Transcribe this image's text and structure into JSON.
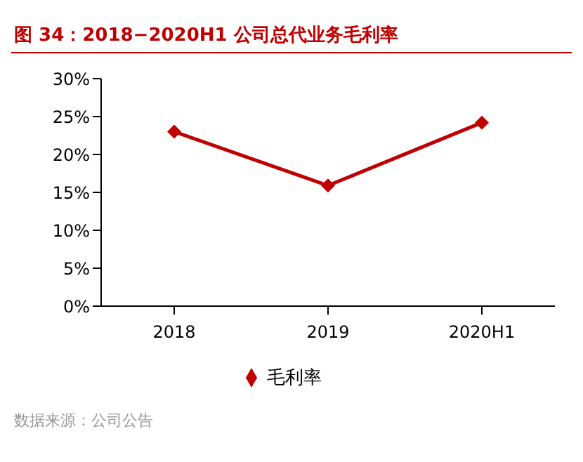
{
  "chart_data": {
    "type": "line",
    "title": "图 34：2018−2020H1 公司总代业务毛利率",
    "categories": [
      "2018",
      "2019",
      "2020H1"
    ],
    "series": [
      {
        "name": "毛利率",
        "color": "#c00000",
        "values": [
          23.0,
          15.9,
          24.2
        ]
      }
    ],
    "ylim": [
      0,
      30
    ],
    "yticks": [
      {
        "value": 0,
        "label": "0%"
      },
      {
        "value": 5,
        "label": "5%"
      },
      {
        "value": 10,
        "label": "10%"
      },
      {
        "value": 15,
        "label": "15%"
      },
      {
        "value": 20,
        "label": "20%"
      },
      {
        "value": 25,
        "label": "25%"
      },
      {
        "value": 30,
        "label": "30%"
      }
    ],
    "marker": "diamond",
    "legend": "bottom",
    "grid": false,
    "annotations": [
      "数据来源：公司公告"
    ]
  }
}
